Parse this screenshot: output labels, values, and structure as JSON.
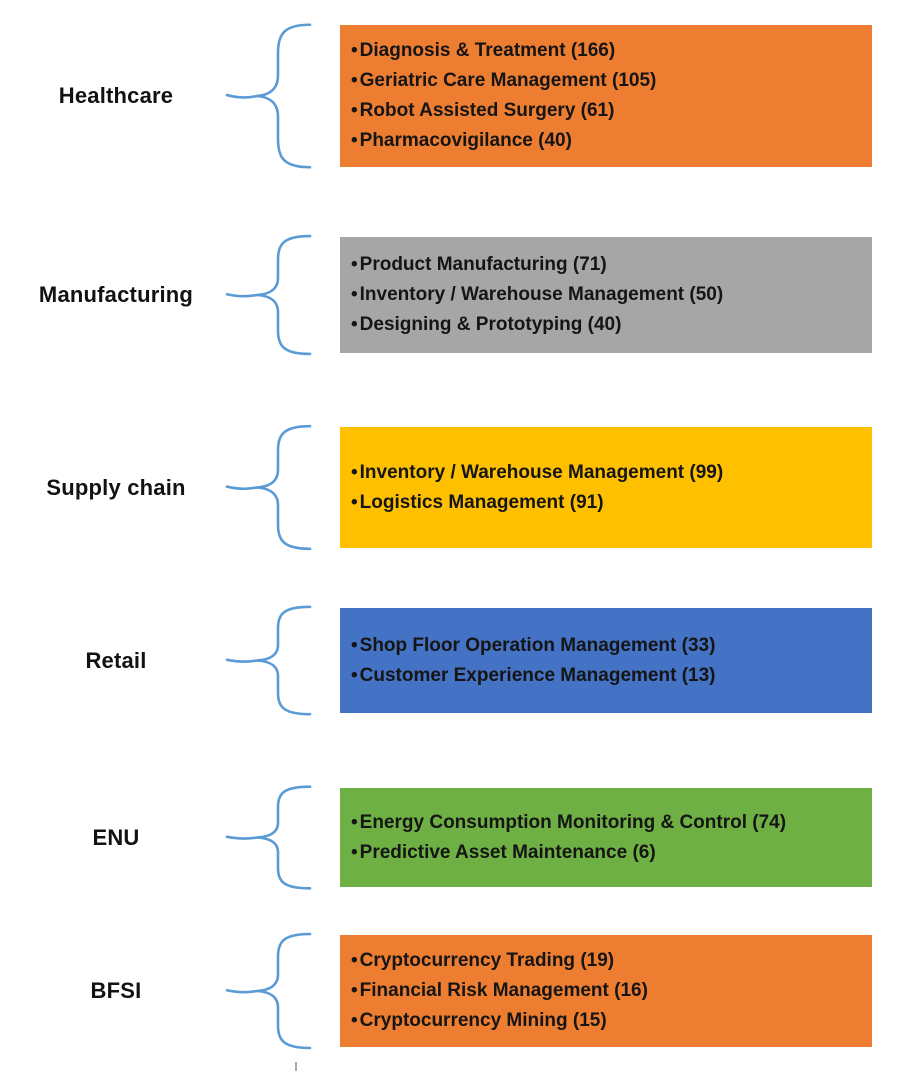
{
  "diagram": {
    "brace_color": "#5B9BD5",
    "text_color": "#151515",
    "sections": [
      {
        "label": "Healthcare",
        "color": "#ED7D31",
        "items": [
          {
            "text": "Diagnosis & Treatment",
            "count": 166
          },
          {
            "text": "Geriatric Care Management",
            "count": 105
          },
          {
            "text": "Robot Assisted Surgery",
            "count": 61
          },
          {
            "text": "Pharmacovigilance",
            "count": 40
          }
        ]
      },
      {
        "label": "Manufacturing",
        "color": "#A6A6A6",
        "items": [
          {
            "text": "Product Manufacturing",
            "count": 71
          },
          {
            "text": "Inventory / Warehouse Management",
            "count": 50
          },
          {
            "text": "Designing & Prototyping",
            "count": 40
          }
        ]
      },
      {
        "label": "Supply chain",
        "color": "#FFC000",
        "items": [
          {
            "text": "Inventory / Warehouse Management",
            "count": 99
          },
          {
            "text": "Logistics Management",
            "count": 91
          }
        ]
      },
      {
        "label": "Retail",
        "color": "#4472C4",
        "items": [
          {
            "text": "Shop Floor Operation Management",
            "count": 33
          },
          {
            "text": "Customer Experience Management",
            "count": 13
          }
        ]
      },
      {
        "label": "ENU",
        "color": "#6FB044",
        "items": [
          {
            "text": "Energy Consumption Monitoring & Control",
            "count": 74
          },
          {
            "text": "Predictive Asset Maintenance",
            "count": 6
          }
        ]
      },
      {
        "label": "BFSI",
        "color": "#ED7D31",
        "items": [
          {
            "text": "Cryptocurrency Trading",
            "count": 19
          },
          {
            "text": "Financial Risk Management",
            "count": 16
          },
          {
            "text": "Cryptocurrency Mining",
            "count": 15
          }
        ]
      }
    ]
  }
}
